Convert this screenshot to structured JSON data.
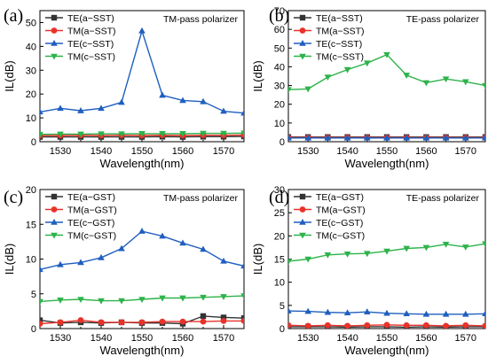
{
  "chart_data": [
    {
      "type": "line",
      "panel_label": "(a)",
      "annotation": "TM-pass polarizer",
      "xlabel": "Wavelength(nm)",
      "ylabel": "IL(dB)",
      "xlim": [
        1525,
        1575
      ],
      "ylim": [
        0,
        55
      ],
      "xticks": [
        "1530",
        "1540",
        "1550",
        "1560",
        "1570"
      ],
      "yticks": [
        "0",
        "10",
        "20",
        "30",
        "40",
        "50"
      ],
      "legend_position": "top-left",
      "x": [
        1525,
        1530,
        1535,
        1540,
        1545,
        1550,
        1555,
        1560,
        1565,
        1570,
        1575
      ],
      "series": [
        {
          "name": "TE(a−SST)",
          "color": "#333333",
          "marker": "square",
          "values": [
            2.0,
            2.0,
            2.0,
            2.0,
            2.0,
            2.0,
            2.1,
            2.0,
            2.1,
            2.1,
            2.2
          ]
        },
        {
          "name": "TM(a−SST)",
          "color": "#e8332a",
          "marker": "circle",
          "values": [
            2.6,
            2.6,
            2.7,
            2.6,
            2.7,
            2.6,
            2.7,
            2.6,
            2.7,
            2.7,
            2.8
          ]
        },
        {
          "name": "TE(c−SST)",
          "color": "#1f5fbf",
          "marker": "triangle-up",
          "values": [
            12.5,
            14.0,
            13.0,
            14.0,
            16.5,
            46.5,
            19.5,
            17.3,
            16.8,
            12.8,
            12.0
          ]
        },
        {
          "name": "TM(c−SST)",
          "color": "#2db34a",
          "marker": "triangle-down",
          "values": [
            3.1,
            3.2,
            3.2,
            3.3,
            3.3,
            3.4,
            3.4,
            3.4,
            3.5,
            3.5,
            3.6
          ]
        }
      ]
    },
    {
      "type": "line",
      "panel_label": "(b)",
      "annotation": "TE-pass polarizer",
      "xlabel": "Wavelength(nm)",
      "ylabel": "IL(dB)",
      "xlim": [
        1525,
        1575
      ],
      "ylim": [
        0,
        70
      ],
      "xticks": [
        "1530",
        "1540",
        "1550",
        "1560",
        "1570"
      ],
      "yticks": [
        "0",
        "10",
        "20",
        "30",
        "40",
        "50",
        "60",
        "70"
      ],
      "legend_position": "top-left",
      "x": [
        1525,
        1530,
        1535,
        1540,
        1545,
        1550,
        1555,
        1560,
        1565,
        1570,
        1575
      ],
      "series": [
        {
          "name": "TE(a−SST)",
          "color": "#333333",
          "marker": "square",
          "values": [
            2.5,
            2.5,
            2.5,
            2.5,
            2.5,
            2.5,
            2.5,
            2.5,
            2.5,
            2.5,
            2.5
          ]
        },
        {
          "name": "TM(a−SST)",
          "color": "#e8332a",
          "marker": "circle",
          "values": [
            2.2,
            2.2,
            2.2,
            2.2,
            2.2,
            2.2,
            2.2,
            2.2,
            2.2,
            2.2,
            2.2
          ]
        },
        {
          "name": "TE(c−SST)",
          "color": "#1f5fbf",
          "marker": "triangle-up",
          "values": [
            2.0,
            2.0,
            2.0,
            2.0,
            2.0,
            2.0,
            2.0,
            2.0,
            2.0,
            2.0,
            2.0
          ]
        },
        {
          "name": "TM(c−SST)",
          "color": "#2db34a",
          "marker": "triangle-down",
          "values": [
            27.8,
            28.2,
            34.5,
            38.5,
            42.0,
            46.5,
            35.5,
            31.5,
            33.5,
            32.0,
            30.0
          ]
        }
      ]
    },
    {
      "type": "line",
      "panel_label": "(c)",
      "annotation": "TM-pass polarizer",
      "xlabel": "Wavelength(nm)",
      "ylabel": "IL(dB)",
      "xlim": [
        1525,
        1575
      ],
      "ylim": [
        0,
        20
      ],
      "xticks": [
        "1530",
        "1540",
        "1550",
        "1560",
        "1570"
      ],
      "yticks": [
        "0",
        "5",
        "10",
        "15",
        "20"
      ],
      "legend_position": "top-left",
      "x": [
        1525,
        1530,
        1535,
        1540,
        1545,
        1550,
        1555,
        1560,
        1565,
        1570,
        1575
      ],
      "series": [
        {
          "name": "TE(a−GST)",
          "color": "#333333",
          "marker": "square",
          "values": [
            1.2,
            0.8,
            0.9,
            0.8,
            0.9,
            0.8,
            0.8,
            0.7,
            1.8,
            1.6,
            1.5
          ]
        },
        {
          "name": "TM(a−GST)",
          "color": "#e8332a",
          "marker": "circle",
          "values": [
            0.7,
            0.9,
            1.2,
            0.9,
            0.9,
            0.9,
            1.0,
            1.0,
            1.0,
            1.1,
            1.1
          ]
        },
        {
          "name": "TE(c−GST)",
          "color": "#1f5fbf",
          "marker": "triangle-up",
          "values": [
            8.5,
            9.2,
            9.5,
            10.2,
            11.5,
            14.0,
            13.3,
            12.3,
            11.4,
            9.7,
            9.0
          ]
        },
        {
          "name": "TM(c−GST)",
          "color": "#2db34a",
          "marker": "triangle-down",
          "values": [
            3.9,
            4.1,
            4.2,
            4.0,
            4.0,
            4.2,
            4.4,
            4.4,
            4.5,
            4.6,
            4.7
          ]
        }
      ]
    },
    {
      "type": "line",
      "panel_label": "(d)",
      "annotation": "TE-pass polarizer",
      "xlabel": "Wavelength(nm)",
      "ylabel": "IL(dB)",
      "xlim": [
        1525,
        1575
      ],
      "ylim": [
        0,
        30
      ],
      "xticks": [
        "1530",
        "1540",
        "1550",
        "1560",
        "1570"
      ],
      "yticks": [
        "0",
        "5",
        "10",
        "15",
        "20",
        "25",
        "30"
      ],
      "legend_position": "top-left",
      "x": [
        1525,
        1530,
        1535,
        1540,
        1545,
        1550,
        1555,
        1560,
        1565,
        1570,
        1575
      ],
      "series": [
        {
          "name": "TE(a−GST)",
          "color": "#333333",
          "marker": "square",
          "values": [
            0.4,
            0.4,
            0.4,
            0.3,
            0.4,
            0.4,
            0.3,
            0.4,
            0.3,
            0.4,
            0.4
          ]
        },
        {
          "name": "TM(a−GST)",
          "color": "#e8332a",
          "marker": "circle",
          "values": [
            0.7,
            0.6,
            0.7,
            0.6,
            0.7,
            0.8,
            0.7,
            0.7,
            0.6,
            0.7,
            0.6
          ]
        },
        {
          "name": "TE(c−GST)",
          "color": "#1f5fbf",
          "marker": "triangle-up",
          "values": [
            3.8,
            3.7,
            3.5,
            3.4,
            3.6,
            3.3,
            3.2,
            3.1,
            3.1,
            3.1,
            3.2
          ]
        },
        {
          "name": "TM(c−GST)",
          "color": "#2db34a",
          "marker": "triangle-down",
          "values": [
            14.5,
            15.0,
            15.9,
            16.1,
            16.2,
            16.7,
            17.3,
            17.5,
            18.2,
            17.6,
            18.3
          ]
        }
      ]
    }
  ]
}
